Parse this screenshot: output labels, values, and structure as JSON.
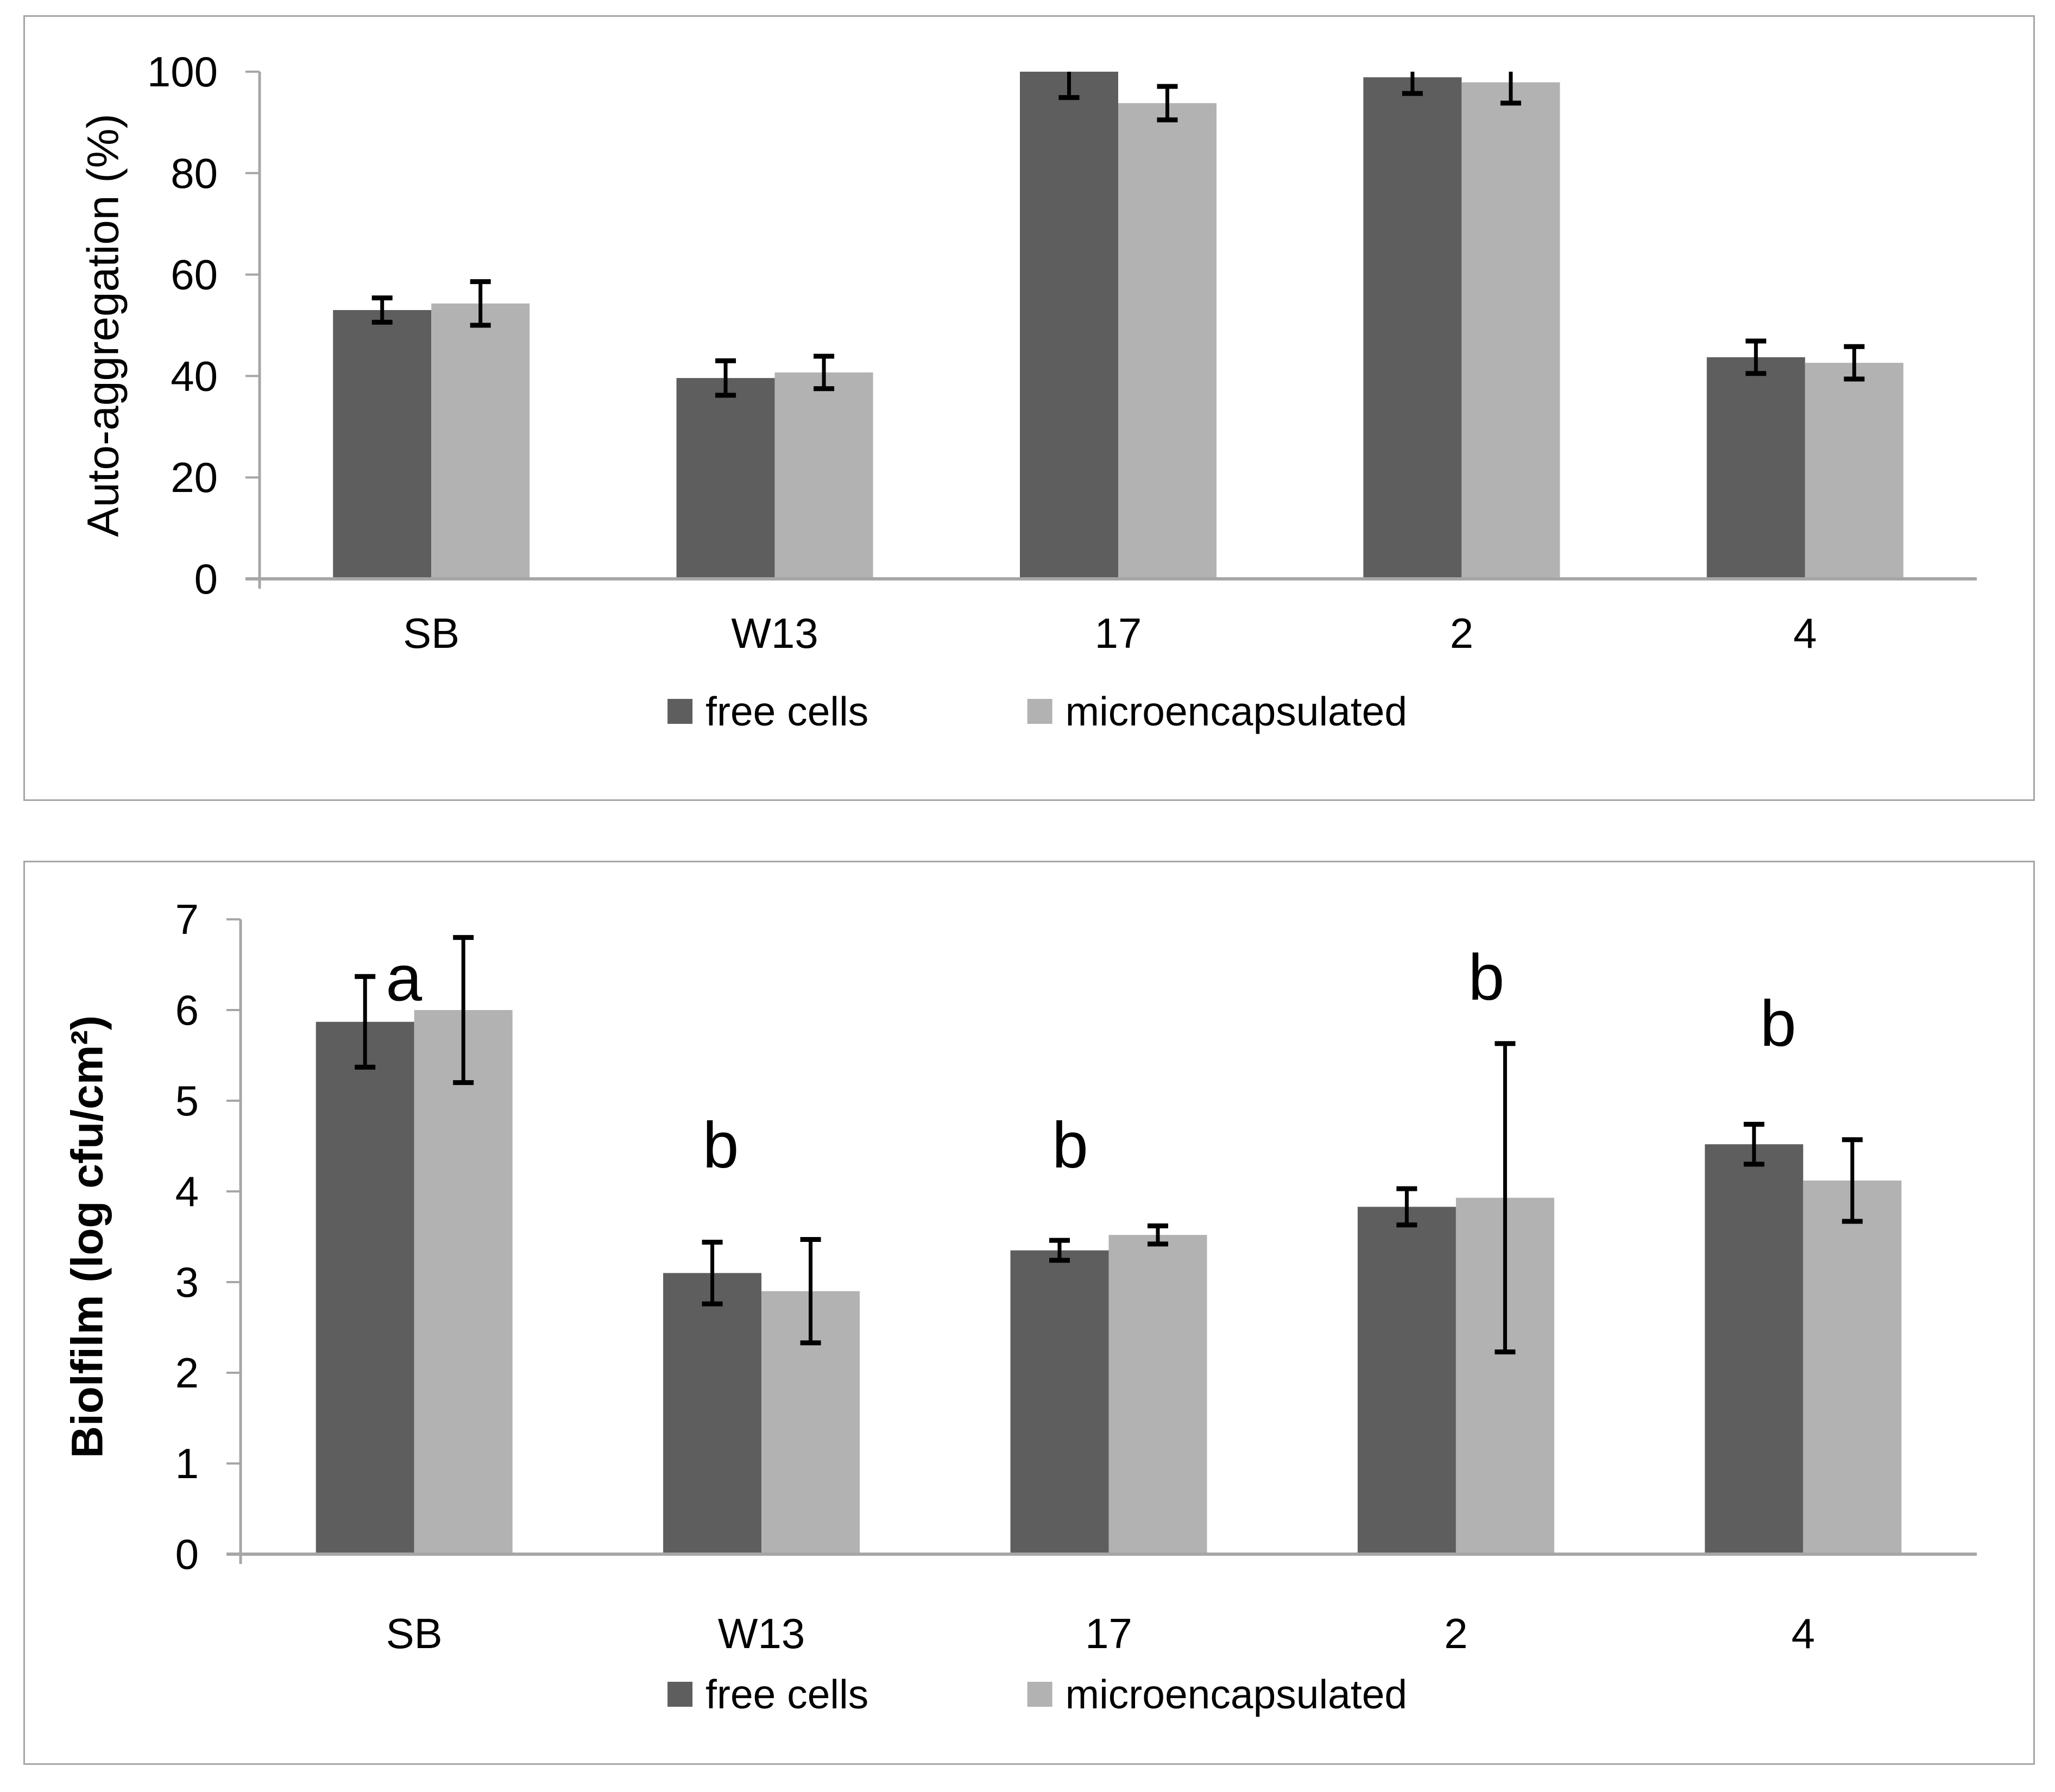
{
  "page": {
    "background": "#ffffff"
  },
  "colors": {
    "free_cells_bar": "#5e5e5e",
    "microencapsulated_bar": "#b2b2b2",
    "axis_gray": "#a6a6a6",
    "error_bar": "#000000",
    "panel_border": "#a6a6a6",
    "text": "#000000"
  },
  "legend": {
    "free_cells_label": "free cells",
    "microencapsulated_label": "microencapsulated"
  },
  "chart_data": [
    {
      "id": "auto-aggregation-chart",
      "type": "bar",
      "title": "",
      "xlabel": "",
      "ylabel": "Auto-aggregation (%)",
      "ylabel_bold": false,
      "ylim": [
        0,
        100
      ],
      "yticks": [
        0,
        20,
        40,
        60,
        80,
        100
      ],
      "grid": false,
      "legend_position": "bottom-center",
      "categories": [
        "SB",
        "W13",
        "17",
        "2",
        "4"
      ],
      "series": [
        {
          "name": "free cells",
          "color": "#5e5e5e",
          "values": [
            53.0,
            39.6,
            100.0,
            98.9,
            43.7
          ],
          "errors": [
            2.4,
            3.4,
            5.1,
            3.2,
            3.2
          ]
        },
        {
          "name": "microencapsulated",
          "color": "#b2b2b2",
          "values": [
            54.3,
            40.7,
            93.8,
            97.9,
            42.6
          ],
          "errors": [
            4.3,
            3.2,
            3.3,
            4.1,
            3.2
          ]
        }
      ],
      "error_bars_clipped_at_top": true,
      "annotations": []
    },
    {
      "id": "biofilm-chart",
      "type": "bar",
      "title": "",
      "xlabel": "",
      "ylabel": "Biolfilm (log cfu/cm²)",
      "ylabel_bold": true,
      "ylim": [
        0,
        7
      ],
      "yticks": [
        0,
        1,
        2,
        3,
        4,
        5,
        6,
        7
      ],
      "grid": false,
      "legend_position": "bottom-center",
      "categories": [
        "SB",
        "W13",
        "17",
        "2",
        "4"
      ],
      "series": [
        {
          "name": "free cells",
          "color": "#5e5e5e",
          "values": [
            5.87,
            3.1,
            3.35,
            3.83,
            4.52
          ],
          "errors": [
            0.5,
            0.34,
            0.11,
            0.2,
            0.22
          ]
        },
        {
          "name": "microencapsulated",
          "color": "#b2b2b2",
          "values": [
            6.0,
            2.9,
            3.52,
            3.93,
            4.12
          ],
          "errors": [
            0.8,
            0.57,
            0.1,
            1.7,
            0.45
          ]
        }
      ],
      "error_bars_clipped_at_top": false,
      "annotations": [
        {
          "text": "a",
          "category": "SB",
          "y": 6.35,
          "dx": -19
        },
        {
          "text": "b",
          "category": "W13",
          "y": 4.51,
          "dx": -75
        },
        {
          "text": "b",
          "category": "17",
          "y": 4.51,
          "dx": -71
        },
        {
          "text": "b",
          "category": "2",
          "y": 6.36,
          "dx": 56
        },
        {
          "text": "b",
          "category": "4",
          "y": 5.85,
          "dx": -46
        }
      ]
    }
  ]
}
